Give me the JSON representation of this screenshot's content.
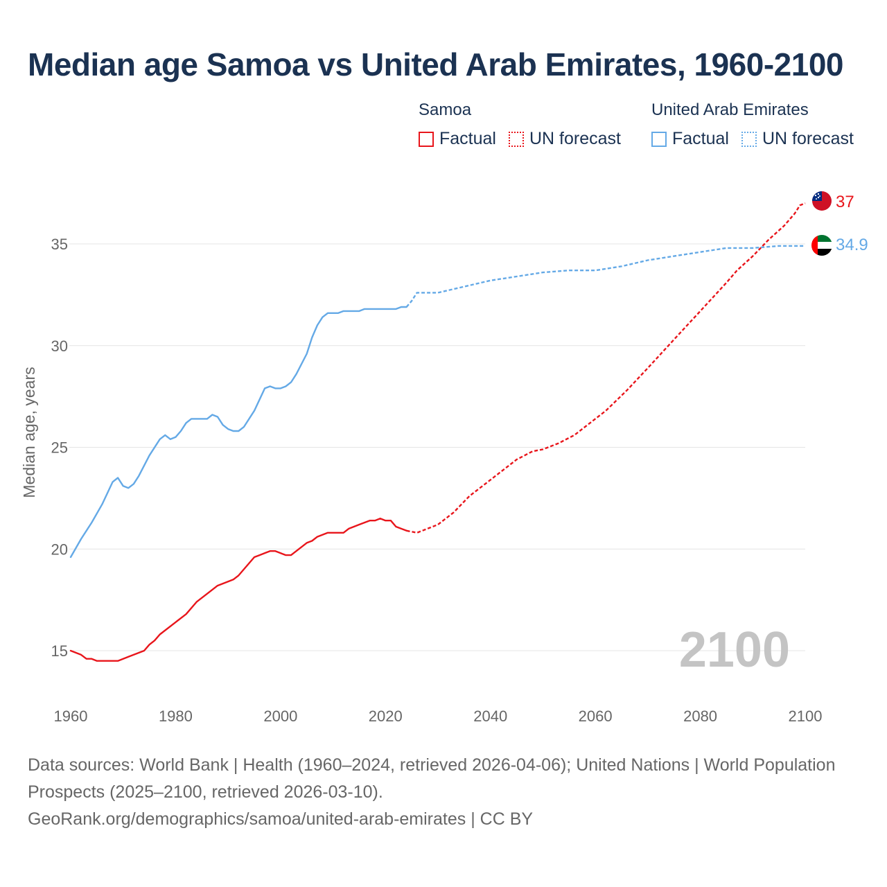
{
  "title": "Median age Samoa vs United Arab Emirates, 1960-2100",
  "legend": {
    "groups": [
      {
        "name": "Samoa",
        "color": "#e8151b",
        "factual_label": "Factual",
        "forecast_label": "UN forecast"
      },
      {
        "name": "United Arab Emirates",
        "color": "#64a9e6",
        "factual_label": "Factual",
        "forecast_label": "UN forecast"
      }
    ]
  },
  "year_overlay": "2100",
  "source": {
    "line1": "Data sources: World Bank | Health (1960–2024, retrieved 2026-04-06); United Nations | World Population Prospects (2025–2100, retrieved 2026-03-10).",
    "line2": "GeoRank.org/demographics/samoa/united-arab-emirates | CC BY"
  },
  "chart_data": {
    "type": "line",
    "title": "Median age Samoa vs United Arab Emirates, 1960-2100",
    "xlabel": "",
    "ylabel": "Median age, years",
    "xlim": [
      1960,
      2100
    ],
    "ylim": [
      13,
      38
    ],
    "xticks": [
      1960,
      1980,
      2000,
      2020,
      2040,
      2060,
      2080,
      2100
    ],
    "yticks": [
      15,
      20,
      25,
      30,
      35
    ],
    "grid": true,
    "forecast_start": 2024,
    "series": [
      {
        "name": "Samoa",
        "color": "#e8151b",
        "end_label": "37",
        "flag": "samoa",
        "points": [
          [
            1960,
            15.0
          ],
          [
            1962,
            14.8
          ],
          [
            1963,
            14.6
          ],
          [
            1964,
            14.6
          ],
          [
            1965,
            14.5
          ],
          [
            1967,
            14.5
          ],
          [
            1969,
            14.5
          ],
          [
            1971,
            14.7
          ],
          [
            1974,
            15.0
          ],
          [
            1975,
            15.3
          ],
          [
            1976,
            15.5
          ],
          [
            1977,
            15.8
          ],
          [
            1980,
            16.4
          ],
          [
            1982,
            16.8
          ],
          [
            1984,
            17.4
          ],
          [
            1986,
            17.8
          ],
          [
            1988,
            18.2
          ],
          [
            1990,
            18.4
          ],
          [
            1991,
            18.5
          ],
          [
            1992,
            18.7
          ],
          [
            1995,
            19.6
          ],
          [
            1996,
            19.7
          ],
          [
            1998,
            19.9
          ],
          [
            1999,
            19.9
          ],
          [
            2001,
            19.7
          ],
          [
            2002,
            19.7
          ],
          [
            2005,
            20.3
          ],
          [
            2006,
            20.4
          ],
          [
            2007,
            20.6
          ],
          [
            2009,
            20.8
          ],
          [
            2012,
            20.8
          ],
          [
            2013,
            21.0
          ],
          [
            2015,
            21.2
          ],
          [
            2017,
            21.4
          ],
          [
            2018,
            21.4
          ],
          [
            2019,
            21.5
          ],
          [
            2020,
            21.4
          ],
          [
            2021,
            21.4
          ],
          [
            2022,
            21.1
          ],
          [
            2024,
            20.9
          ],
          [
            2026,
            20.8
          ],
          [
            2028,
            21.0
          ],
          [
            2030,
            21.2
          ],
          [
            2033,
            21.8
          ],
          [
            2036,
            22.6
          ],
          [
            2040,
            23.4
          ],
          [
            2045,
            24.4
          ],
          [
            2048,
            24.8
          ],
          [
            2050,
            24.9
          ],
          [
            2053,
            25.2
          ],
          [
            2056,
            25.6
          ],
          [
            2060,
            26.4
          ],
          [
            2062,
            26.8
          ],
          [
            2066,
            27.8
          ],
          [
            2070,
            28.9
          ],
          [
            2075,
            30.3
          ],
          [
            2080,
            31.7
          ],
          [
            2085,
            33.1
          ],
          [
            2087,
            33.7
          ],
          [
            2090,
            34.4
          ],
          [
            2093,
            35.2
          ],
          [
            2096,
            35.9
          ],
          [
            2098,
            36.5
          ],
          [
            2099,
            36.9
          ],
          [
            2100,
            37.0
          ]
        ]
      },
      {
        "name": "United Arab Emirates",
        "color": "#64a9e6",
        "end_label": "34.9",
        "flag": "uae",
        "points": [
          [
            1960,
            19.6
          ],
          [
            1962,
            20.5
          ],
          [
            1964,
            21.3
          ],
          [
            1966,
            22.2
          ],
          [
            1968,
            23.3
          ],
          [
            1969,
            23.5
          ],
          [
            1970,
            23.1
          ],
          [
            1971,
            23.0
          ],
          [
            1972,
            23.2
          ],
          [
            1973,
            23.6
          ],
          [
            1975,
            24.6
          ],
          [
            1977,
            25.4
          ],
          [
            1978,
            25.6
          ],
          [
            1979,
            25.4
          ],
          [
            1980,
            25.5
          ],
          [
            1981,
            25.8
          ],
          [
            1982,
            26.2
          ],
          [
            1983,
            26.4
          ],
          [
            1986,
            26.4
          ],
          [
            1987,
            26.6
          ],
          [
            1988,
            26.5
          ],
          [
            1989,
            26.1
          ],
          [
            1990,
            25.9
          ],
          [
            1991,
            25.8
          ],
          [
            1992,
            25.8
          ],
          [
            1993,
            26.0
          ],
          [
            1995,
            26.8
          ],
          [
            1997,
            27.9
          ],
          [
            1998,
            28.0
          ],
          [
            1999,
            27.9
          ],
          [
            2000,
            27.9
          ],
          [
            2001,
            28.0
          ],
          [
            2002,
            28.2
          ],
          [
            2003,
            28.6
          ],
          [
            2005,
            29.6
          ],
          [
            2006,
            30.4
          ],
          [
            2007,
            31.0
          ],
          [
            2008,
            31.4
          ],
          [
            2009,
            31.6
          ],
          [
            2011,
            31.6
          ],
          [
            2012,
            31.7
          ],
          [
            2015,
            31.7
          ],
          [
            2016,
            31.8
          ],
          [
            2022,
            31.8
          ],
          [
            2023,
            31.9
          ],
          [
            2024,
            31.9
          ],
          [
            2025,
            32.2
          ],
          [
            2026,
            32.6
          ],
          [
            2030,
            32.6
          ],
          [
            2035,
            32.9
          ],
          [
            2040,
            33.2
          ],
          [
            2045,
            33.4
          ],
          [
            2050,
            33.6
          ],
          [
            2055,
            33.7
          ],
          [
            2060,
            33.7
          ],
          [
            2065,
            33.9
          ],
          [
            2070,
            34.2
          ],
          [
            2075,
            34.4
          ],
          [
            2080,
            34.6
          ],
          [
            2085,
            34.8
          ],
          [
            2090,
            34.8
          ],
          [
            2095,
            34.9
          ],
          [
            2100,
            34.9
          ]
        ]
      }
    ]
  }
}
